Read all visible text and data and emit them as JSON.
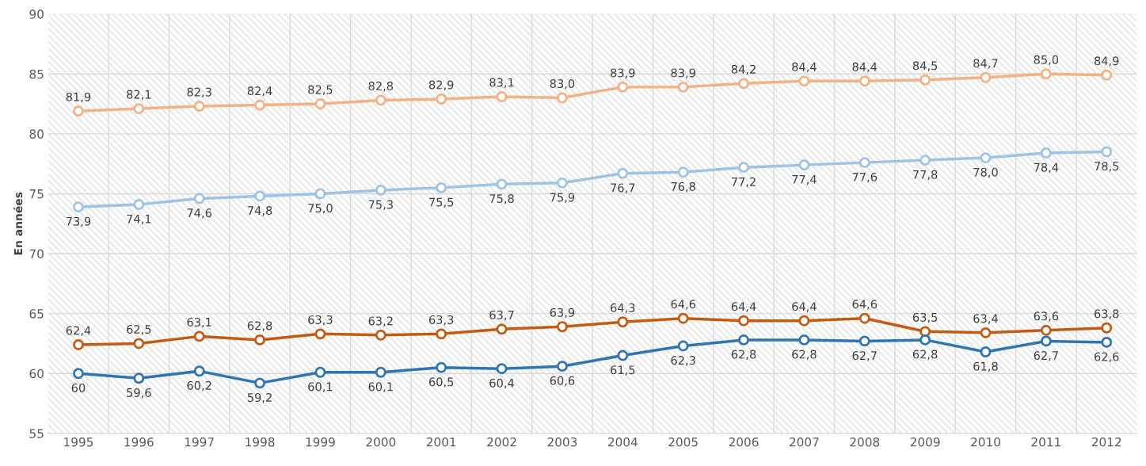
{
  "chart_data": {
    "type": "line",
    "ylabel": "En années",
    "categories": [
      "1995",
      "1996",
      "1997",
      "1998",
      "1999",
      "2000",
      "2001",
      "2002",
      "2003",
      "2004",
      "2005",
      "2006",
      "2007",
      "2008",
      "2009",
      "2010",
      "2011",
      "2012"
    ],
    "ylim": [
      55,
      90
    ],
    "yticks": [
      55,
      60,
      65,
      70,
      75,
      80,
      85,
      90
    ],
    "grid": true,
    "legend": false,
    "marker": "circle",
    "line_style": "solid",
    "series": [
      {
        "color": "#f4b183",
        "values": [
          81.9,
          82.1,
          82.3,
          82.4,
          82.5,
          82.8,
          82.9,
          83.1,
          83.0,
          83.9,
          83.9,
          84.2,
          84.4,
          84.4,
          84.5,
          84.7,
          85.0,
          84.9
        ],
        "value_labels": [
          "81,9",
          "82,1",
          "82,3",
          "82,4",
          "82,5",
          "82,8",
          "82,9",
          "83,1",
          "83,0",
          "83,9",
          "83,9",
          "84,2",
          "84,4",
          "84,4",
          "84,5",
          "84,7",
          "85,0",
          "84,9"
        ]
      },
      {
        "color": "#9dc3e6",
        "values": [
          73.9,
          74.1,
          74.6,
          74.8,
          75.0,
          75.3,
          75.5,
          75.8,
          75.9,
          76.7,
          76.8,
          77.2,
          77.4,
          77.6,
          77.8,
          78.0,
          78.4,
          78.5
        ],
        "value_labels": [
          "73,9",
          "74,1",
          "74,6",
          "74,8",
          "75,0",
          "75,3",
          "75,5",
          "75,8",
          "75,9",
          "76,7",
          "76,8",
          "77,2",
          "77,4",
          "77,6",
          "77,8",
          "78,0",
          "78,4",
          "78,5"
        ]
      },
      {
        "color": "#c55a11",
        "values": [
          62.4,
          62.5,
          63.1,
          62.8,
          63.3,
          63.2,
          63.3,
          63.7,
          63.9,
          64.3,
          64.6,
          64.4,
          64.4,
          64.6,
          63.5,
          63.4,
          63.6,
          63.8
        ],
        "value_labels": [
          "62,4",
          "62,5",
          "63,1",
          "62,8",
          "63,3",
          "63,2",
          "63,3",
          "63,7",
          "63,9",
          "64,3",
          "64,6",
          "64,4",
          "64,4",
          "64,6",
          "63,5",
          "63,4",
          "63,6",
          "63,8"
        ]
      },
      {
        "color": "#2e75b6",
        "values": [
          60.0,
          59.6,
          60.2,
          59.2,
          60.1,
          60.1,
          60.5,
          60.4,
          60.6,
          61.5,
          62.3,
          62.8,
          62.8,
          62.7,
          62.8,
          61.8,
          62.7,
          62.6
        ],
        "value_labels": [
          "60",
          "59,6",
          "60,2",
          "59,2",
          "60,1",
          "60,1",
          "60,5",
          "60,4",
          "60,6",
          "61,5",
          "62,3",
          "62,8",
          "62,8",
          "62,7",
          "62,8",
          "61,8",
          "62,7",
          "62,6"
        ]
      }
    ]
  }
}
